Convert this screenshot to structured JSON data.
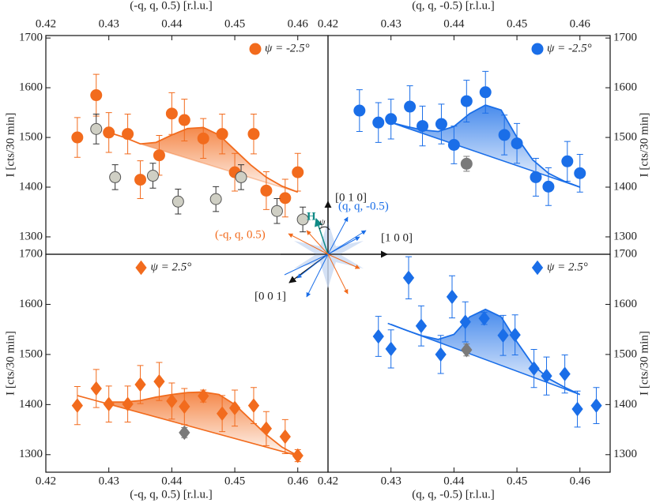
{
  "chart_data": [
    {
      "type": "scatter",
      "xlabel": "(-q, q, 0.5) [r.l.u.]",
      "ylabel": "I [cts/30 min]",
      "xlim": [
        0.42,
        0.4648
      ],
      "ylim": [
        1265,
        1705
      ],
      "xticks": [
        0.42,
        0.43,
        0.44,
        0.45,
        0.46
      ],
      "yticks": [
        1300,
        1400,
        1500,
        1600,
        1700
      ],
      "xaxis": "top",
      "yaxis": "left",
      "legend": "upper right",
      "series": [
        {
          "name": "ψ = -2.5°",
          "color": "#f26b1d",
          "marker": "circle",
          "x": [
            0.425,
            0.428,
            0.43,
            0.433,
            0.435,
            0.438,
            0.44,
            0.442,
            0.445,
            0.448,
            0.45,
            0.453,
            0.455,
            0.458,
            0.46
          ],
          "values": [
            1500,
            1585,
            1510,
            1507,
            1415,
            1464,
            1548,
            1535,
            1498,
            1507,
            1430,
            1507,
            1393,
            1378,
            1430
          ],
          "errors": [
            40,
            42,
            40,
            40,
            38,
            40,
            42,
            42,
            40,
            40,
            38,
            40,
            38,
            38,
            38
          ]
        },
        {
          "color": "#cfcfc4",
          "marker": "circle",
          "x": [
            0.428,
            0.431,
            0.437,
            0.441,
            0.447,
            0.451,
            0.4567,
            0.4608
          ],
          "values": [
            1517,
            1420,
            1423,
            1371,
            1376,
            1420,
            1352,
            1335
          ],
          "errors": [
            30,
            25,
            25,
            25,
            25,
            25,
            25,
            25
          ]
        }
      ],
      "fit": {
        "color": "#f26b1d",
        "x": [
          0.43,
          0.4325,
          0.435,
          0.4375,
          0.44,
          0.4425,
          0.445,
          0.4475,
          0.45,
          0.4525,
          0.455,
          0.4575,
          0.46
        ],
        "values": [
          1510,
          1500,
          1487,
          1490,
          1505,
          1518,
          1520,
          1505,
          1475,
          1445,
          1420,
          1402,
          1390
        ]
      },
      "baseline": {
        "x": [
          0.435,
          0.46
        ],
        "values": [
          1487,
          1390
        ]
      }
    },
    {
      "type": "scatter",
      "xlabel": "(q, q, -0.5) [r.l.u.]",
      "ylabel": "I [cts/30 min]",
      "xlim": [
        0.42,
        0.4648
      ],
      "ylim": [
        1265,
        1705
      ],
      "xticks": [
        0.42,
        0.43,
        0.44,
        0.45,
        0.46
      ],
      "yticks": [
        1300,
        1400,
        1500,
        1600,
        1700
      ],
      "xaxis": "top",
      "yaxis": "right",
      "legend": "upper right",
      "series": [
        {
          "name": "ψ = -2.5°",
          "color": "#1a6ee8",
          "marker": "circle",
          "x": [
            0.425,
            0.428,
            0.43,
            0.433,
            0.435,
            0.438,
            0.44,
            0.442,
            0.445,
            0.448,
            0.45,
            0.453,
            0.455,
            0.458,
            0.46
          ],
          "values": [
            1554,
            1530,
            1537,
            1562,
            1523,
            1527,
            1485,
            1573,
            1591,
            1505,
            1488,
            1420,
            1401,
            1452,
            1428
          ],
          "errors": [
            42,
            40,
            40,
            42,
            40,
            40,
            38,
            42,
            42,
            40,
            40,
            38,
            38,
            40,
            38
          ]
        },
        {
          "color": "#7a7a7a",
          "marker": "circle",
          "x": [
            0.442
          ],
          "values": [
            1447
          ],
          "errors": [
            15
          ]
        }
      ],
      "fit": {
        "color": "#1a6ee8",
        "x": [
          0.43,
          0.4325,
          0.435,
          0.4375,
          0.44,
          0.4425,
          0.445,
          0.4475,
          0.45,
          0.4525,
          0.455,
          0.4575,
          0.46
        ],
        "values": [
          1530,
          1522,
          1515,
          1512,
          1522,
          1548,
          1565,
          1555,
          1500,
          1455,
          1428,
          1412,
          1400
        ]
      },
      "baseline": {
        "x": [
          0.43,
          0.46
        ],
        "values": [
          1530,
          1400
        ]
      }
    },
    {
      "type": "scatter",
      "xlabel": "(-q, q, 0.5) [r.l.u.]",
      "ylabel": "I [cts/30 min]",
      "xlim": [
        0.42,
        0.4648
      ],
      "ylim": [
        1265,
        1700
      ],
      "xticks": [
        0.42,
        0.43,
        0.44,
        0.45,
        0.46
      ],
      "yticks": [
        1300,
        1400,
        1500,
        1600,
        1700
      ],
      "xaxis": "bottom",
      "yaxis": "left",
      "legend": "upper center",
      "series": [
        {
          "name": "ψ = 2.5°",
          "color": "#f26b1d",
          "marker": "diamond",
          "x": [
            0.425,
            0.428,
            0.43,
            0.433,
            0.435,
            0.438,
            0.44,
            0.442,
            0.445,
            0.448,
            0.45,
            0.453,
            0.455,
            0.458,
            0.46
          ],
          "values": [
            1398,
            1432,
            1401,
            1401,
            1440,
            1446,
            1407,
            1396,
            1417,
            1382,
            1393,
            1398,
            1352,
            1336,
            1298
          ],
          "errors": [
            38,
            38,
            36,
            36,
            38,
            38,
            36,
            36,
            12,
            36,
            36,
            36,
            34,
            34,
            12
          ]
        },
        {
          "color": "#7a7a7a",
          "marker": "diamond",
          "x": [
            0.442
          ],
          "values": [
            1344
          ],
          "errors": [
            10
          ]
        }
      ],
      "fit": {
        "color": "#f26b1d",
        "x": [
          0.43,
          0.4325,
          0.435,
          0.4375,
          0.44,
          0.4425,
          0.445,
          0.4475,
          0.45,
          0.4525,
          0.455,
          0.4575,
          0.46
        ],
        "values": [
          1405,
          1405,
          1408,
          1415,
          1420,
          1424,
          1425,
          1420,
          1400,
          1370,
          1340,
          1315,
          1298
        ]
      },
      "baseline": {
        "x": [
          0.425,
          0.46
        ],
        "values": [
          1418,
          1298
        ]
      }
    },
    {
      "type": "scatter",
      "xlabel": "(q, q, -0.5) [r.l.u.]",
      "ylabel": "I [cts/30 min]",
      "xlim": [
        0.42,
        0.4648
      ],
      "ylim": [
        1265,
        1700
      ],
      "xticks": [
        0.42,
        0.43,
        0.44,
        0.45,
        0.46
      ],
      "yticks": [
        1300,
        1400,
        1500,
        1600,
        1700
      ],
      "xaxis": "bottom",
      "yaxis": "right",
      "legend": "upper right",
      "series": [
        {
          "name": "ψ = 2.5°",
          "color": "#1a6ee8",
          "marker": "diamond",
          "x": [
            0.428,
            0.43,
            0.4328,
            0.4348,
            0.4379,
            0.4397,
            0.4418,
            0.4448,
            0.4478,
            0.4497,
            0.4527,
            0.4547,
            0.4576,
            0.4596,
            0.4626
          ],
          "values": [
            1536,
            1511,
            1653,
            1557,
            1500,
            1615,
            1565,
            1572,
            1538,
            1539,
            1472,
            1457,
            1461,
            1391,
            1398
          ],
          "errors": [
            40,
            38,
            42,
            40,
            38,
            42,
            40,
            12,
            40,
            40,
            38,
            38,
            38,
            36,
            36
          ]
        },
        {
          "color": "#7a7a7a",
          "marker": "diamond",
          "x": [
            0.442
          ],
          "values": [
            1509
          ],
          "errors": [
            12
          ]
        }
      ],
      "fit": {
        "color": "#1a6ee8",
        "x": [
          0.43,
          0.4325,
          0.435,
          0.4375,
          0.44,
          0.4425,
          0.445,
          0.4475,
          0.45,
          0.4525,
          0.455,
          0.4575,
          0.46
        ],
        "values": [
          1560,
          1548,
          1537,
          1530,
          1540,
          1575,
          1590,
          1575,
          1525,
          1480,
          1452,
          1435,
          1420
        ]
      },
      "baseline": {
        "x": [
          0.4295,
          0.46
        ],
        "values": [
          1562,
          1420
        ]
      }
    }
  ],
  "diagram": {
    "labels": [
      "[0 1 0]",
      "[1 0 0]",
      "[0 0 1]",
      "H",
      "ψ",
      "(q, q, -0.5)",
      "(-q, q, 0.5)"
    ]
  }
}
